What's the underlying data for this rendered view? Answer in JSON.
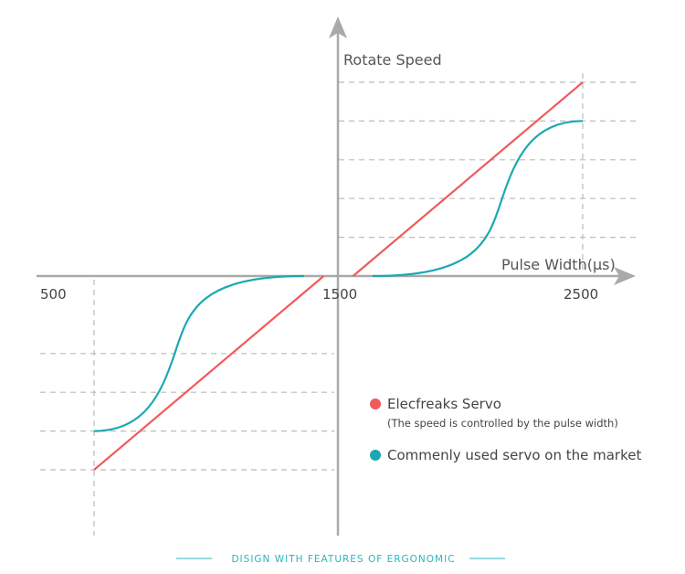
{
  "chart_data": {
    "type": "line",
    "ylabel": "Rotate Speed",
    "xlabel": "Pulse Width(μs)",
    "x_ticks": [
      {
        "value": 500,
        "label": "500"
      },
      {
        "value": 1500,
        "label": "1500"
      },
      {
        "value": 2500,
        "label": "2500"
      }
    ],
    "xlim": [
      500,
      2500
    ],
    "ylim": [
      -1,
      1
    ],
    "grid": "dashed reference lines",
    "legend_position": "bottom-right",
    "series": [
      {
        "name": "Elecfreaks Servo",
        "note": "(The speed is controlled by the pulse width)",
        "color": "#f15a5a",
        "shape": "linear",
        "x": [
          500,
          1440,
          1560,
          2500
        ],
        "y": [
          -1,
          0,
          0,
          1
        ]
      },
      {
        "name": "Commenly used servo on the market",
        "color": "#1aa9b1",
        "shape": "s-curve",
        "x": [
          500,
          830,
          1360,
          1640,
          2170,
          2500
        ],
        "y": [
          -0.8,
          -0.4,
          0,
          0,
          0.4,
          0.8
        ]
      }
    ],
    "colors": {
      "axis": "#a9a9a9",
      "grid": "#bbbbbb",
      "footer": "#2ab5bf"
    }
  },
  "footer": {
    "text": "DISIGN WITH FEATURES OF ERGONOMIC"
  }
}
